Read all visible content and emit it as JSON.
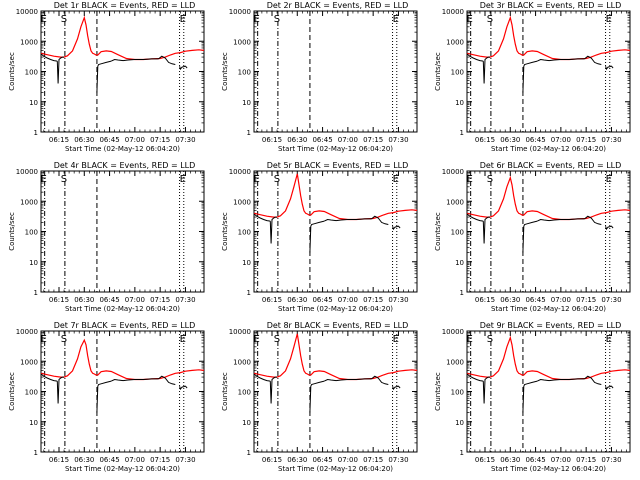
{
  "figure": {
    "xlabel": "Start Time (02-May-12 06:04:20)",
    "ylabel": "Counts/sec"
  },
  "chart_data": [
    {
      "type": "line",
      "title": "Det 1r BLACK = Events, RED = LLD",
      "has_data": true,
      "peak": 6000
    },
    {
      "type": "line",
      "title": "Det 2r BLACK = Events, RED = LLD",
      "has_data": false,
      "peak": 0
    },
    {
      "type": "line",
      "title": "Det 3r BLACK = Events, RED = LLD",
      "has_data": true,
      "peak": 6000
    },
    {
      "type": "line",
      "title": "Det 4r BLACK = Events, RED = LLD",
      "has_data": false,
      "peak": 0
    },
    {
      "type": "line",
      "title": "Det 5r BLACK = Events, RED = LLD",
      "has_data": true,
      "peak": 8000
    },
    {
      "type": "line",
      "title": "Det 6r BLACK = Events, RED = LLD",
      "has_data": true,
      "peak": 6000
    },
    {
      "type": "line",
      "title": "Det 7r BLACK = Events, RED = LLD",
      "has_data": true,
      "peak": 5000
    },
    {
      "type": "line",
      "title": "Det 8r BLACK = Events, RED = LLD",
      "has_data": true,
      "peak": 8000
    },
    {
      "type": "line",
      "title": "Det 9r BLACK = Events, RED = LLD",
      "has_data": true,
      "peak": 6000
    }
  ],
  "shared_axes": {
    "x_ticks": [
      "06:15",
      "06:30",
      "06:45",
      "07:00",
      "07:15",
      "07:30"
    ],
    "x_tick_minutes": [
      375,
      390,
      405,
      420,
      435,
      450
    ],
    "xlim_minutes": [
      364.33,
      461
    ],
    "y_ticks": [
      "1",
      "10",
      "100",
      "1000",
      "10000"
    ],
    "y_tick_values": [
      1,
      10,
      100,
      1000,
      10000
    ],
    "ylim": [
      1,
      10000
    ],
    "yscale": "log",
    "markers": [
      {
        "label": "E",
        "minute": 366.5,
        "style": "dash-dot"
      },
      {
        "label": "S",
        "minute": 378.5,
        "style": "dash-dot"
      },
      {
        "label": "",
        "minute": 397.5,
        "style": "dashed"
      },
      {
        "label": "",
        "minute": 446.5,
        "style": "dotted"
      },
      {
        "label": "E",
        "minute": 449,
        "style": "dotted"
      }
    ],
    "lld_series": {
      "name": "LLD",
      "color": "#ff0000",
      "x": [
        364.33,
        368,
        372,
        376,
        378,
        380,
        383,
        386,
        388,
        390,
        391,
        392,
        393,
        394,
        395,
        396,
        397,
        398,
        400,
        403,
        406,
        410,
        415,
        420,
        425,
        430,
        435,
        438,
        441,
        444,
        447,
        450,
        454,
        458,
        461
      ],
      "y": [
        400,
        360,
        320,
        300,
        300,
        330,
        480,
        1200,
        3000,
        "PEAK",
        3500,
        1500,
        800,
        480,
        400,
        380,
        350,
        350,
        450,
        480,
        460,
        360,
        270,
        250,
        250,
        260,
        270,
        300,
        350,
        400,
        420,
        470,
        500,
        520,
        500
      ]
    },
    "events_series": {
      "name": "Events",
      "color": "#000000",
      "segments": [
        {
          "x": [
            364.33,
            366,
            368,
            370,
            372,
            374
          ],
          "y": [
            380,
            320,
            280,
            250,
            230,
            220
          ]
        },
        {
          "x": [
            374,
            374.5,
            375,
            376,
            377,
            378
          ],
          "y": [
            220,
            40,
            250,
            280,
            300,
            300
          ]
        },
        {
          "x": [
            397.5,
            398,
            398.5,
            400,
            403,
            406
          ],
          "y": [
            20,
            150,
            170,
            180,
            200,
            220
          ]
        },
        {
          "x": [
            406,
            408,
            410,
            413,
            416,
            420,
            425,
            430,
            434
          ],
          "y": [
            220,
            250,
            240,
            230,
            240,
            250,
            250,
            260,
            260
          ]
        },
        {
          "x": [
            434,
            436,
            438,
            440,
            442,
            444
          ],
          "y": [
            260,
            320,
            280,
            200,
            180,
            170
          ]
        },
        {
          "x": [
            446.5,
            447,
            448,
            450,
            451
          ],
          "y": [
            150,
            120,
            140,
            150,
            130
          ]
        }
      ]
    }
  }
}
